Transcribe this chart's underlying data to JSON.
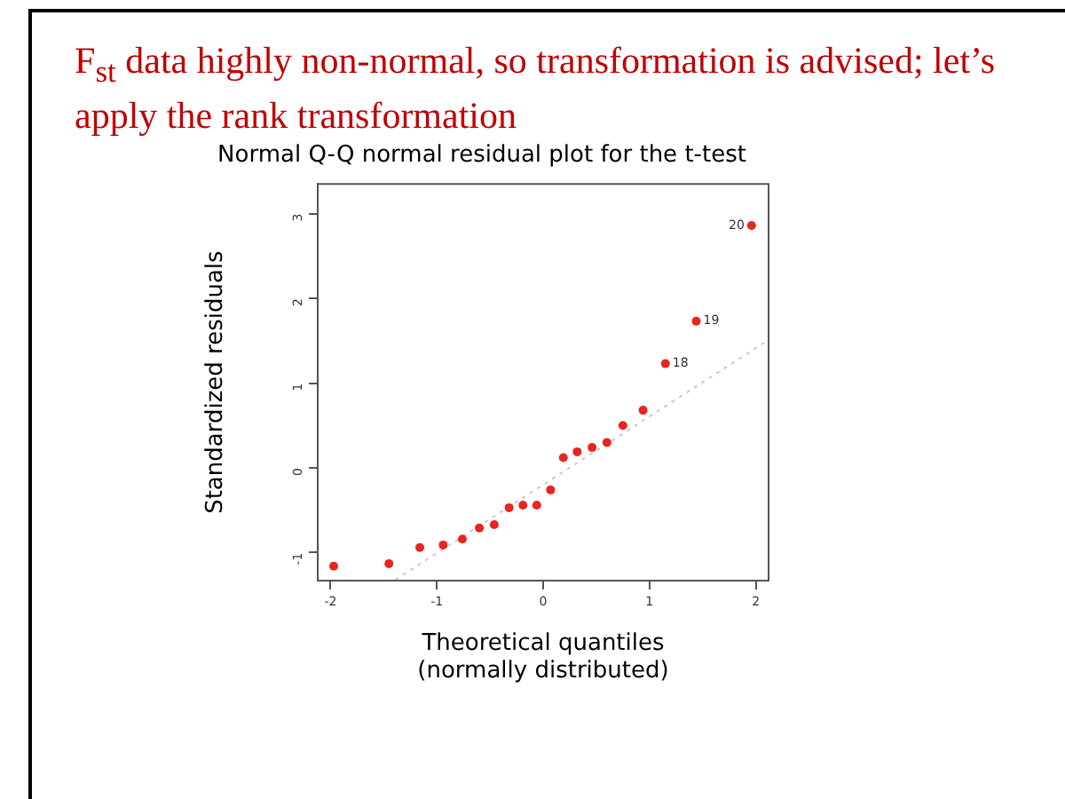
{
  "chart_data": {
    "type": "scatter",
    "title": "Normal Q-Q normal residual plot for the t-test",
    "xlabel": "Theoretical quantiles\n(normally distributed)",
    "ylabel": "Standardized residuals",
    "annotations": [
      "F$_{st}$ data highly non-normal, so transformation is advised; let’s apply the rank transformation",
      {
        "text": "18",
        "x": 1.15,
        "y": 1.23
      },
      {
        "text": "19",
        "x": 1.44,
        "y": 1.73
      },
      {
        "text": "20",
        "x": 1.96,
        "y": 2.86
      }
    ],
    "series": [
      {
        "color": "#e8251f",
        "marker": "circle",
        "x": [
          -1.97,
          -1.45,
          -1.16,
          -0.94,
          -0.76,
          -0.6,
          -0.46,
          -0.32,
          -0.19,
          -0.06,
          0.07,
          0.19,
          0.32,
          0.46,
          0.6,
          0.75,
          0.94,
          1.15,
          1.44,
          1.96
        ],
        "values": [
          -1.16,
          -1.13,
          -0.94,
          -0.91,
          -0.84,
          -0.71,
          -0.67,
          -0.47,
          -0.44,
          -0.44,
          -0.26,
          0.12,
          0.19,
          0.24,
          0.3,
          0.5,
          0.68,
          1.23,
          1.73,
          2.86
        ]
      },
      {
        "type": "line",
        "color": "#c8c8c8",
        "marker": "none",
        "line_style": "dotted",
        "x": [
          -1.39,
          2.12
        ],
        "values": [
          -1.32,
          1.51
        ]
      }
    ],
    "xlim": [
      -2.12,
      2.12
    ],
    "ylim": [
      -1.33,
      3.35
    ],
    "xticks": [
      -2,
      -1,
      0,
      1,
      2
    ],
    "yticks": [
      -1,
      0,
      1,
      2,
      3
    ],
    "grid": false,
    "legend": false
  }
}
